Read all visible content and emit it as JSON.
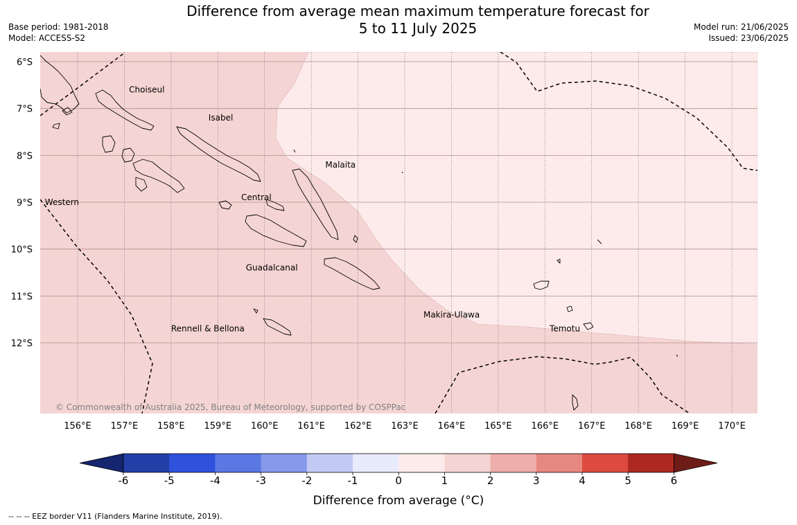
{
  "title_line1": "Difference from average mean maximum temperature forecast for",
  "title_line2": "5 to 11 July 2025",
  "base_period": "Base period: 1981-2018",
  "model": "Model: ACCESS-S2",
  "model_run": "Model run: 21/06/2025",
  "issued": "Issued: 23/06/2025",
  "copyright": "© Commonwealth of Australia 2025, Bureau of Meteorology, supported by COSPPac",
  "footnote": "-- -- -- EEZ border V11 (Flanders Marine Institute, 2019).",
  "lat_ticks": [
    "6°S",
    "7°S",
    "8°S",
    "9°S",
    "10°S",
    "11°S",
    "12°S"
  ],
  "lon_ticks": [
    "156°E",
    "157°E",
    "158°E",
    "159°E",
    "160°E",
    "161°E",
    "162°E",
    "163°E",
    "164°E",
    "165°E",
    "166°E",
    "167°E",
    "168°E",
    "169°E",
    "170°E"
  ],
  "provinces": [
    {
      "name": "Choiseul",
      "lon": 157.1,
      "lat": -6.6
    },
    {
      "name": "Isabel",
      "lon": 158.8,
      "lat": -7.2
    },
    {
      "name": "Malaita",
      "lon": 161.3,
      "lat": -8.2
    },
    {
      "name": "Western",
      "lon": 155.3,
      "lat": -9.0
    },
    {
      "name": "Central",
      "lon": 159.5,
      "lat": -8.9
    },
    {
      "name": "Guadalcanal",
      "lon": 159.6,
      "lat": -10.4
    },
    {
      "name": "Makira-Ulawa",
      "lon": 163.4,
      "lat": -11.4
    },
    {
      "name": "Rennell & Bellona",
      "lon": 158.0,
      "lat": -11.7
    },
    {
      "name": "Temotu",
      "lon": 166.1,
      "lat": -11.7
    }
  ],
  "colorbar": {
    "label": "Difference from average (°C)",
    "ticks": [
      "-6",
      "-5",
      "-4",
      "-3",
      "-2",
      "-1",
      "0",
      "1",
      "2",
      "3",
      "4",
      "5",
      "6"
    ],
    "colors": [
      "#2340a8",
      "#2f51dc",
      "#5a77e3",
      "#8699ea",
      "#c2caf4",
      "#e8ebfc",
      "#fcebea",
      "#f5d5d4",
      "#eeaeaa",
      "#e78880",
      "#dc4a40",
      "#ac2820"
    ],
    "under_color": "#152570",
    "over_color": "#6e1c17"
  },
  "fill_colors": {
    "band_0_1": "#fcebea",
    "band_1_2": "#f5d5d4"
  }
}
